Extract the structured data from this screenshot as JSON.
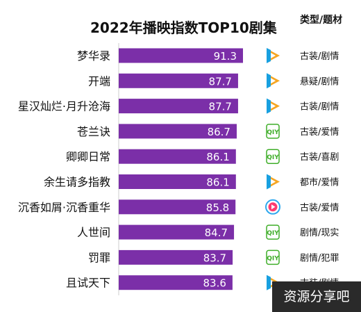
{
  "chart_data": {
    "type": "bar",
    "orientation": "horizontal",
    "title": "2022年播映指数TOP10剧集",
    "column_header": "类型/题材",
    "categories": [
      "梦华录",
      "开端",
      "星汉灿烂·月升沧海",
      "苍兰诀",
      "卿卿日常",
      "余生请多指教",
      "沉香如屑·沉香重华",
      "人世间",
      "罚罪",
      "且试天下"
    ],
    "values": [
      91.3,
      87.7,
      87.7,
      86.7,
      86.1,
      86.1,
      85.8,
      84.7,
      83.7,
      83.6
    ],
    "value_labels": [
      "91.3",
      "87.7",
      "87.7",
      "86.7",
      "86.1",
      "86.1",
      "85.8",
      "84.7",
      "83.7",
      "83.6"
    ],
    "genres": [
      "古装/剧情",
      "悬疑/剧情",
      "古装/剧情",
      "古装/爱情",
      "古装/喜剧",
      "都市/爱情",
      "古装/爱情",
      "剧情/现实",
      "剧情/犯罪",
      "古装/剧情"
    ],
    "platform_icons": [
      "tencent-video-icon",
      "tencent-video-icon",
      "tencent-video-icon",
      "iqiyi-icon",
      "iqiyi-icon",
      "tencent-video-icon",
      "youku-icon",
      "iqiyi-icon",
      "iqiyi-icon",
      "tencent-video-icon"
    ],
    "bar_color": "#7b2fa8",
    "grid": false
  },
  "watermark": "资源分享吧"
}
